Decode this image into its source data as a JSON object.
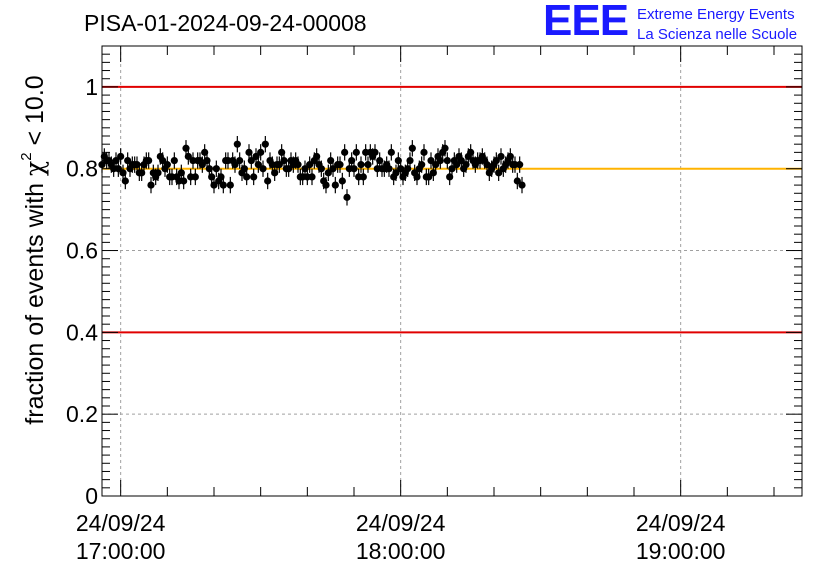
{
  "title": "PISA-01-2024-09-24-00008",
  "logo": {
    "mark": "EEE",
    "line1": "Extreme Energy Events",
    "line2": "La Scienza nelle Scuole"
  },
  "colors": {
    "axis": "#000000",
    "grid": "#a0a0a0",
    "limit_line": "#e00000",
    "mean_line": "#ffb300",
    "points": "#000000",
    "logo": "#1a1aff"
  },
  "chart_data": {
    "type": "scatter",
    "title": "PISA-01-2024-09-24-00008",
    "ylabel_prefix": "fraction of events with ",
    "ylabel_symbol": "χ",
    "ylabel_exponent": "2",
    "ylabel_suffix": " < 10.0",
    "ylim": [
      0,
      1.1
    ],
    "yticks": [
      {
        "value": 0,
        "label": "0"
      },
      {
        "value": 0.2,
        "label": "0.2"
      },
      {
        "value": 0.4,
        "label": "0.4"
      },
      {
        "value": 0.6,
        "label": "0.6"
      },
      {
        "value": 0.8,
        "label": "0.8"
      },
      {
        "value": 1,
        "label": "1"
      }
    ],
    "xlim": [
      "16:56:00",
      "19:26:00"
    ],
    "xticks": [
      {
        "time": "17:00:00",
        "date": "24/09/24",
        "clock": "17:00:00"
      },
      {
        "time": "18:00:00",
        "date": "24/09/24",
        "clock": "18:00:00"
      },
      {
        "time": "19:00:00",
        "date": "24/09/24",
        "clock": "19:00:00"
      }
    ],
    "grid": true,
    "reference_lines": [
      {
        "value": 1.0,
        "color": "#e00000"
      },
      {
        "value": 0.4,
        "color": "#e00000"
      },
      {
        "value": 0.8,
        "color": "#ffb300"
      }
    ],
    "error_bar": 0.02,
    "series": [
      {
        "start_time": "16:56:00",
        "step_seconds": 30,
        "y": [
          0.81,
          0.83,
          0.82,
          0.82,
          0.81,
          0.8,
          0.82,
          0.8,
          0.83,
          0.79,
          0.77,
          0.82,
          0.8,
          0.81,
          0.81,
          0.81,
          0.79,
          0.79,
          0.81,
          0.82,
          0.82,
          0.76,
          0.79,
          0.78,
          0.79,
          0.83,
          0.82,
          0.8,
          0.81,
          0.78,
          0.78,
          0.82,
          0.78,
          0.77,
          0.79,
          0.77,
          0.85,
          0.83,
          0.78,
          0.82,
          0.78,
          0.82,
          0.82,
          0.81,
          0.84,
          0.82,
          0.8,
          0.78,
          0.76,
          0.8,
          0.77,
          0.78,
          0.76,
          0.82,
          0.82,
          0.76,
          0.82,
          0.81,
          0.86,
          0.82,
          0.79,
          0.8,
          0.78,
          0.84,
          0.82,
          0.78,
          0.83,
          0.81,
          0.84,
          0.8,
          0.86,
          0.77,
          0.82,
          0.81,
          0.79,
          0.81,
          0.81,
          0.84,
          0.82,
          0.8,
          0.8,
          0.82,
          0.81,
          0.82,
          0.81,
          0.78,
          0.78,
          0.8,
          0.78,
          0.81,
          0.78,
          0.82,
          0.83,
          0.81,
          0.8,
          0.77,
          0.76,
          0.79,
          0.82,
          0.8,
          0.76,
          0.81,
          0.81,
          0.77,
          0.84,
          0.73,
          0.8,
          0.82,
          0.8,
          0.84,
          0.78,
          0.81,
          0.78,
          0.84,
          0.81,
          0.84,
          0.83,
          0.84,
          0.8,
          0.82,
          0.8,
          0.8,
          0.81,
          0.8,
          0.84,
          0.78,
          0.79,
          0.82,
          0.8,
          0.78,
          0.79,
          0.8,
          0.82,
          0.85,
          0.79,
          0.78,
          0.8,
          0.81,
          0.84,
          0.78,
          0.78,
          0.82,
          0.79,
          0.81,
          0.83,
          0.82,
          0.84,
          0.85,
          0.82,
          0.78,
          0.8,
          0.82,
          0.81,
          0.83,
          0.82,
          0.8,
          0.81,
          0.83,
          0.84,
          0.82,
          0.81,
          0.82,
          0.82,
          0.83,
          0.82,
          0.81,
          0.79,
          0.8,
          0.81,
          0.82,
          0.79,
          0.83,
          0.8,
          0.81,
          0.82,
          0.83,
          0.81,
          0.81,
          0.77,
          0.81,
          0.76
        ]
      }
    ]
  }
}
